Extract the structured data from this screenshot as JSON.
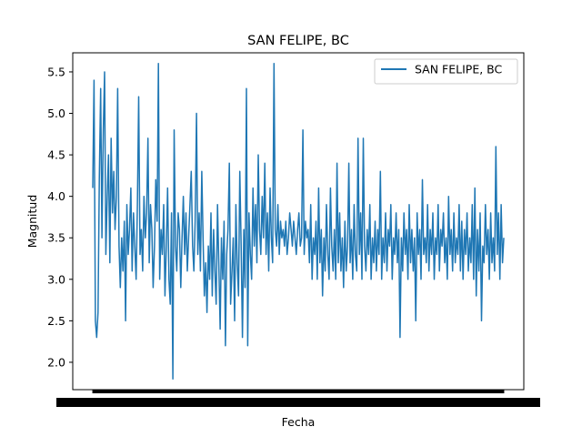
{
  "chart_data": {
    "type": "line",
    "title": "SAN FELIPE, BC",
    "xlabel": "Fecha",
    "ylabel": "Magnitud",
    "ylim": [
      1.67,
      5.73
    ],
    "yticks": [
      "2.0",
      "2.5",
      "3.0",
      "3.5",
      "4.0",
      "4.5",
      "5.0",
      "5.5"
    ],
    "grid": false,
    "legend_position": "top-right",
    "x_note": "Category (date) axis with thousands of overlapping, unreadable tick labels",
    "series": [
      {
        "name": "SAN FELIPE, BC",
        "color": "#1f77b4",
        "values": [
          4.1,
          5.4,
          2.5,
          2.3,
          2.6,
          4.2,
          5.3,
          3.5,
          4.8,
          5.5,
          3.3,
          4.0,
          4.5,
          3.2,
          4.7,
          3.8,
          4.3,
          3.6,
          4.0,
          5.3,
          3.4,
          2.9,
          3.5,
          3.1,
          3.7,
          2.5,
          3.9,
          3.3,
          3.6,
          4.1,
          3.1,
          3.8,
          3.4,
          3.0,
          3.9,
          5.2,
          3.3,
          3.6,
          3.1,
          4.0,
          3.5,
          3.8,
          4.7,
          3.2,
          3.9,
          3.6,
          2.9,
          3.4,
          4.2,
          3.7,
          5.6,
          3.0,
          3.6,
          3.3,
          3.9,
          2.8,
          3.4,
          4.1,
          3.0,
          2.7,
          3.8,
          1.8,
          4.8,
          3.4,
          3.1,
          3.8,
          3.6,
          2.9,
          3.5,
          4.0,
          3.3,
          3.8,
          3.1,
          3.5,
          3.9,
          4.3,
          3.4,
          3.1,
          3.7,
          5.0,
          3.3,
          3.8,
          3.1,
          4.3,
          3.5,
          2.8,
          3.2,
          2.6,
          3.4,
          3.0,
          3.8,
          2.8,
          3.6,
          3.1,
          2.7,
          3.9,
          3.2,
          2.4,
          3.5,
          3.0,
          3.7,
          2.2,
          3.3,
          3.6,
          4.4,
          2.7,
          3.1,
          3.5,
          2.5,
          3.9,
          3.2,
          2.8,
          4.3,
          3.4,
          2.3,
          3.6,
          2.9,
          5.3,
          2.2,
          3.8,
          3.3,
          3.0,
          4.1,
          3.4,
          3.9,
          3.2,
          4.5,
          3.6,
          3.3,
          4.0,
          3.5,
          4.4,
          3.3,
          3.8,
          3.1,
          4.1,
          3.5,
          3.2,
          5.6,
          3.6,
          3.4,
          3.9,
          3.3,
          3.7,
          3.5,
          3.6,
          3.4,
          3.7,
          3.3,
          3.5,
          3.8,
          3.6,
          3.4,
          3.7,
          3.5,
          3.3,
          3.6,
          3.8,
          3.4,
          3.5,
          4.8,
          3.3,
          3.7,
          3.5,
          3.6,
          3.2,
          3.9,
          3.0,
          3.5,
          3.3,
          3.7,
          3.0,
          4.1,
          3.2,
          3.6,
          2.8,
          3.5,
          3.1,
          3.9,
          3.3,
          3.0,
          4.1,
          3.4,
          3.1,
          3.6,
          3.0,
          4.4,
          3.2,
          3.8,
          3.1,
          3.5,
          2.9,
          3.7,
          3.1,
          3.4,
          4.4,
          3.2,
          3.6,
          3.0,
          3.9,
          3.3,
          3.1,
          4.7,
          3.3,
          3.8,
          3.0,
          4.7,
          3.4,
          3.1,
          3.6,
          3.3,
          3.9,
          3.0,
          3.5,
          3.2,
          3.7,
          3.1,
          3.6,
          3.3,
          4.3,
          3.0,
          3.5,
          3.2,
          3.8,
          3.1,
          3.6,
          3.4,
          3.9,
          3.0,
          3.5,
          3.3,
          3.8,
          3.2,
          3.6,
          2.3,
          3.5,
          3.1,
          3.8,
          3.3,
          3.6,
          3.0,
          3.9,
          3.2,
          3.6,
          3.1,
          3.5,
          2.5,
          3.8,
          3.3,
          3.6,
          3.0,
          4.2,
          3.3,
          3.5,
          3.2,
          3.9,
          3.1,
          3.6,
          3.3,
          3.8,
          3.0,
          3.5,
          3.3,
          3.9,
          3.1,
          3.6,
          3.4,
          3.8,
          3.2,
          3.5,
          3.0,
          4.0,
          3.3,
          3.6,
          3.1,
          3.8,
          3.2,
          3.5,
          3.3,
          3.9,
          3.1,
          3.7,
          3.0,
          3.6,
          3.3,
          3.8,
          3.1,
          3.5,
          3.2,
          3.9,
          3.0,
          4.1,
          2.8,
          3.6,
          3.1,
          3.8,
          2.5,
          3.4,
          3.2,
          3.9,
          3.3,
          3.6,
          3.0,
          3.8,
          3.2,
          3.5,
          3.1,
          4.6,
          3.3,
          3.8,
          3.0,
          3.9,
          3.2,
          3.5
        ]
      }
    ]
  }
}
